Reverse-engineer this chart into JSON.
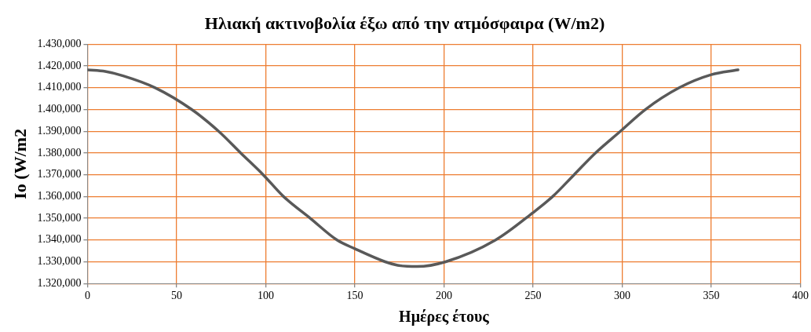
{
  "chart_data": {
    "type": "line",
    "title": "Ηλιακή ακτινοβολία έξω από την ατμόσφαιρα (W/m2)",
    "xlabel": "Ημέρες έτους",
    "ylabel": "Io (W/m2",
    "series": [
      {
        "color": "#595959",
        "x": [
          0,
          10,
          20,
          38,
          58.5,
          73.6,
          86,
          98.6,
          110,
          125,
          140,
          150,
          167,
          174,
          185,
          201,
          229,
          250,
          261,
          273,
          285,
          299,
          313,
          332,
          350,
          365
        ],
        "values": [
          1418.2,
          1417.5,
          1415.5,
          1410,
          1400,
          1390,
          1380,
          1370,
          1360,
          1350,
          1340,
          1336,
          1330,
          1328.4,
          1327.8,
          1330,
          1340,
          1352.6,
          1360,
          1370,
          1380,
          1390,
          1400,
          1410,
          1416,
          1418.2
        ]
      }
    ],
    "xlim": [
      0,
      400
    ],
    "xticks": [
      0,
      50,
      100,
      150,
      200,
      250,
      300,
      350,
      400
    ],
    "ylim": [
      1320,
      1430
    ],
    "yticks": [
      {
        "value": 1320,
        "label": "1.320,000"
      },
      {
        "value": 1330,
        "label": "1.330,000"
      },
      {
        "value": 1340,
        "label": "1.340,000"
      },
      {
        "value": 1350,
        "label": "1.350,000"
      },
      {
        "value": 1360,
        "label": "1.360,000"
      },
      {
        "value": 1370,
        "label": "1.370,000"
      },
      {
        "value": 1380,
        "label": "1.380,000"
      },
      {
        "value": 1390,
        "label": "1.390,000"
      },
      {
        "value": 1400,
        "label": "1.400,000"
      },
      {
        "value": 1410,
        "label": "1.410,000"
      },
      {
        "value": 1420,
        "label": "1.420,000"
      },
      {
        "value": 1430,
        "label": "1.430,000"
      }
    ],
    "grid": true,
    "legend": false,
    "marker": "none",
    "line_style": "solid"
  }
}
